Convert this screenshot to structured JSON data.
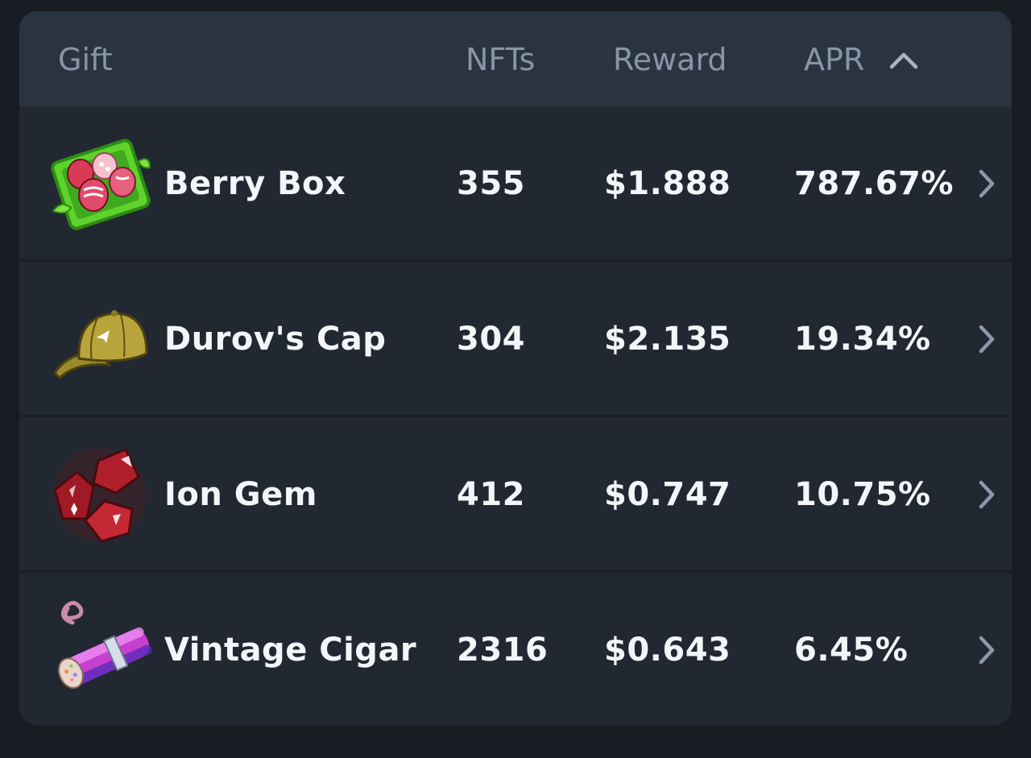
{
  "table": {
    "headers": {
      "gift": "Gift",
      "nfts": "NFTs",
      "reward": "Reward",
      "apr": "APR"
    },
    "sort": {
      "column": "APR",
      "direction": "descending",
      "icon": "chevron-up-icon"
    },
    "rows": [
      {
        "name": "Berry Box",
        "nfts": "355",
        "reward": "$1.888",
        "apr": "787.67%",
        "icon": "berry-box-icon"
      },
      {
        "name": "Durov's Cap",
        "nfts": "304",
        "reward": "$2.135",
        "apr": "19.34%",
        "icon": "cap-icon"
      },
      {
        "name": "Ion Gem",
        "nfts": "412",
        "reward": "$0.747",
        "apr": "10.75%",
        "icon": "gem-icon"
      },
      {
        "name": "Vintage Cigar",
        "nfts": "2316",
        "reward": "$0.643",
        "apr": "6.45%",
        "icon": "cigar-icon"
      }
    ]
  },
  "colors": {
    "background": "#181d24",
    "card": "#222831",
    "header": "#2a3340",
    "header_text": "#8895a6",
    "row_text": "#f3f5f8"
  }
}
